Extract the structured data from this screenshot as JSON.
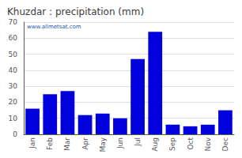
{
  "chart_data": {
    "type": "bar",
    "title": "Khuzdar : precipitation (mm)",
    "categories": [
      "Jan",
      "Feb",
      "Mar",
      "Apr",
      "May",
      "Jun",
      "Jul",
      "Aug",
      "Sep",
      "Oct",
      "Nov",
      "Dec"
    ],
    "values": [
      16,
      25,
      27,
      12,
      13,
      10,
      47,
      64,
      6,
      5,
      6,
      15
    ],
    "color": "#0000dd",
    "ylim": [
      0,
      70
    ],
    "yticks": [
      0,
      10,
      20,
      30,
      40,
      50,
      60,
      70
    ],
    "grid": true,
    "annotations": [
      "www.allmetsat.com"
    ]
  }
}
